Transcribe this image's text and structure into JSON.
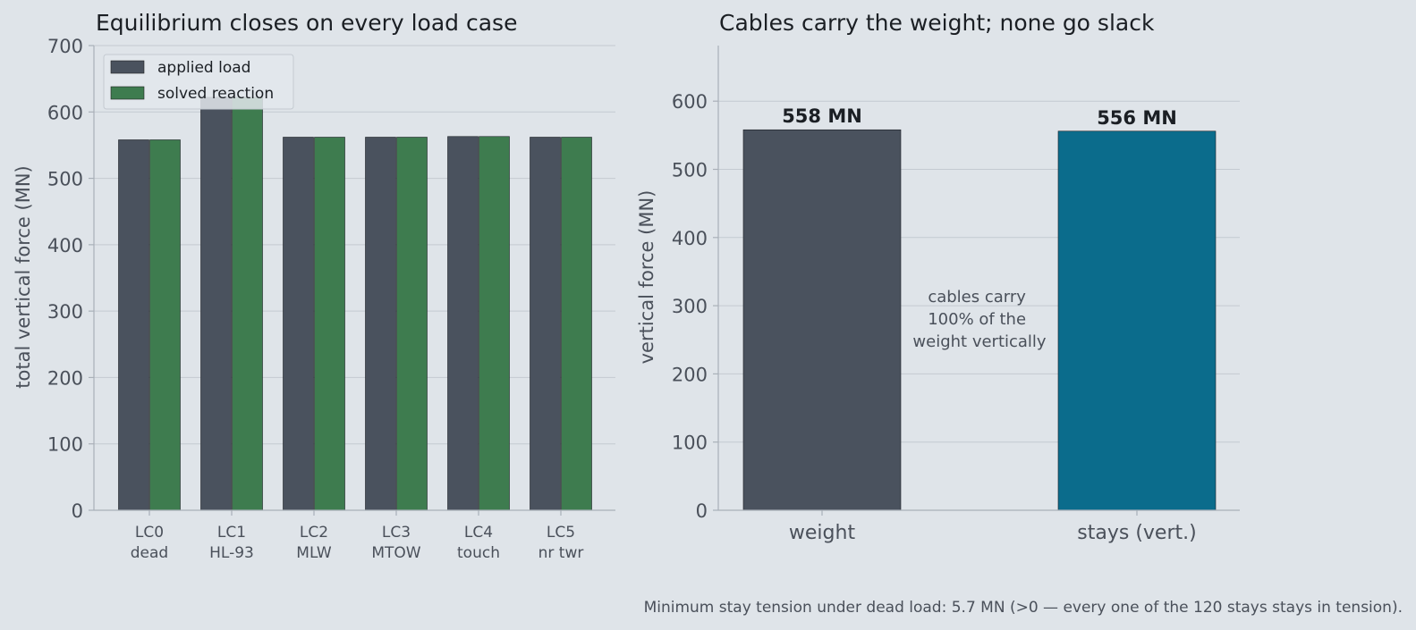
{
  "chart_data": [
    {
      "type": "bar",
      "title": "Equilibrium closes on every load case",
      "xlabel": "",
      "ylabel": "total vertical force (MN)",
      "ylim": [
        0,
        700
      ],
      "yticks": [
        0,
        100,
        200,
        300,
        400,
        500,
        600,
        700
      ],
      "grid": true,
      "legend": "top-left",
      "categories": [
        {
          "top": "LC0",
          "bottom": "dead"
        },
        {
          "top": "LC1",
          "bottom": "HL-93"
        },
        {
          "top": "LC2",
          "bottom": "MLW"
        },
        {
          "top": "LC3",
          "bottom": "MTOW"
        },
        {
          "top": "LC4",
          "bottom": "touch"
        },
        {
          "top": "LC5",
          "bottom": "nr twr"
        }
      ],
      "series": [
        {
          "name": "applied load",
          "color": "#4a525e",
          "values": [
            558,
            622,
            562,
            562,
            563,
            562
          ]
        },
        {
          "name": "solved reaction",
          "color": "#3e7c4f",
          "values": [
            558,
            622,
            562,
            562,
            563,
            562
          ]
        }
      ]
    },
    {
      "type": "bar",
      "title": "Cables carry the weight; none go slack",
      "xlabel": "",
      "ylabel": "vertical force (MN)",
      "ylim": [
        0,
        680
      ],
      "yticks": [
        0,
        100,
        200,
        300,
        400,
        500,
        600
      ],
      "grid": true,
      "categories": [
        "weight",
        "stays (vert.)"
      ],
      "values": [
        558,
        556
      ],
      "colors": [
        "#4a525e",
        "#0b6c8c"
      ],
      "data_labels": [
        "558 MN",
        "556 MN"
      ],
      "annotation": [
        "cables carry",
        "100% of the",
        "weight vertically"
      ]
    }
  ],
  "footer": "Minimum stay tension under dead load: 5.7 MN (>0 — every one of the 120 stays stays in tension)."
}
